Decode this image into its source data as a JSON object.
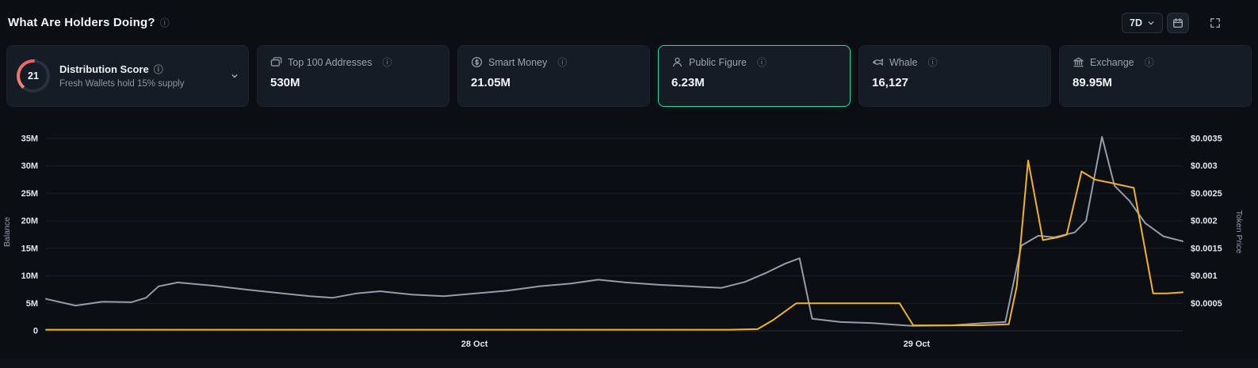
{
  "colors": {
    "accent": "#2fd6a5",
    "gauge_arc": "#e85f63",
    "balance_line": "#eeb422",
    "price_line": "#959daa"
  },
  "header": {
    "title": "What Are Holders Doing?",
    "info_icon": "ⓘ",
    "range_label": "7D",
    "calendar_icon": "calendar-icon",
    "fullscreen_icon": "fullscreen-icon",
    "range_caret_icon": "chevron-down-icon"
  },
  "cards": {
    "distribution": {
      "score": "21",
      "title": "Distribution Score",
      "info_icon": "ⓘ",
      "subtitle": "Fresh Wallets hold 15% supply",
      "chevron_icon": "chevron-down-icon"
    },
    "metrics": [
      {
        "label": "Top 100 Addresses",
        "value": "530M",
        "icon": "top-100-addresses-icon",
        "info_icon": "ⓘ",
        "selected": false
      },
      {
        "label": "Smart Money",
        "value": "21.05M",
        "icon": "smart-money-icon",
        "info_icon": "ⓘ",
        "selected": false
      },
      {
        "label": "Public Figure",
        "value": "6.23M",
        "icon": "public-figure-icon",
        "info_icon": "ⓘ",
        "selected": true
      },
      {
        "label": "Whale",
        "value": "16,127",
        "icon": "whale-icon",
        "info_icon": "ⓘ",
        "selected": false
      },
      {
        "label": "Exchange",
        "value": "89.95M",
        "icon": "exchange-icon",
        "info_icon": "ⓘ",
        "selected": false
      }
    ]
  },
  "chart_data": {
    "type": "line",
    "left_axis": {
      "label": "Balance",
      "max": 36,
      "ticks": [
        0,
        5,
        10,
        15,
        20,
        25,
        30,
        35
      ],
      "tick_labels": [
        "0",
        "5M",
        "10M",
        "15M",
        "20M",
        "25M",
        "30M",
        "35M"
      ]
    },
    "right_axis": {
      "label": "Token Price",
      "max": 0.0036,
      "ticks": [
        0.0005,
        0.001,
        0.0015,
        0.002,
        0.0025,
        0.003,
        0.0035
      ],
      "tick_labels": [
        "$0.0005",
        "$0.001",
        "$0.0015",
        "$0.002",
        "$0.0025",
        "$0.003",
        "$0.0035"
      ]
    },
    "x_labels": [
      {
        "label": "28 Oct",
        "pos": 37.7
      },
      {
        "label": "29 Oct",
        "pos": 76.6
      }
    ],
    "grid": true,
    "legend": "none",
    "series": [
      {
        "name": "Token Price",
        "axis": "right",
        "color": "#959daa",
        "unit": "$",
        "points": [
          [
            0,
            0.00058
          ],
          [
            2.6,
            0.00046
          ],
          [
            5,
            0.00053
          ],
          [
            7.5,
            0.00052
          ],
          [
            8.8,
            0.0006
          ],
          [
            9.9,
            0.00081
          ],
          [
            11.6,
            0.00088
          ],
          [
            14.8,
            0.00082
          ],
          [
            17.6,
            0.00075
          ],
          [
            20.4,
            0.00069
          ],
          [
            23.2,
            0.00063
          ],
          [
            25.2,
            0.0006
          ],
          [
            27.3,
            0.00068
          ],
          [
            29.4,
            0.00072
          ],
          [
            32.2,
            0.00066
          ],
          [
            35,
            0.00063
          ],
          [
            37.8,
            0.00068
          ],
          [
            40.6,
            0.00073
          ],
          [
            43.4,
            0.00081
          ],
          [
            46.2,
            0.00086
          ],
          [
            48.6,
            0.00093
          ],
          [
            51,
            0.00088
          ],
          [
            53.8,
            0.00084
          ],
          [
            56.6,
            0.00081
          ],
          [
            59.4,
            0.00078
          ],
          [
            61.5,
            0.00089
          ],
          [
            63.3,
            0.00105
          ],
          [
            65,
            0.00122
          ],
          [
            66.3,
            0.00132
          ],
          [
            67.4,
            0.00022
          ],
          [
            69.9,
            0.00016
          ],
          [
            72.7,
            0.00014
          ],
          [
            76.2,
            9e-05
          ],
          [
            79.7,
            0.0001
          ],
          [
            82.4,
            0.00014
          ],
          [
            84.4,
            0.00016
          ],
          [
            85.8,
            0.00155
          ],
          [
            87.3,
            0.00173
          ],
          [
            88.7,
            0.0017
          ],
          [
            90.5,
            0.00179
          ],
          [
            91.5,
            0.002
          ],
          [
            92.9,
            0.00353
          ],
          [
            94,
            0.00264
          ],
          [
            95.3,
            0.00237
          ],
          [
            96.7,
            0.00196
          ],
          [
            98.3,
            0.00172
          ],
          [
            100,
            0.00163
          ]
        ]
      },
      {
        "name": "Balance",
        "axis": "left",
        "color": "#eeb422",
        "unit": "M",
        "points": [
          [
            0,
            0.2
          ],
          [
            10,
            0.2
          ],
          [
            20,
            0.2
          ],
          [
            30,
            0.2
          ],
          [
            40,
            0.2
          ],
          [
            50,
            0.2
          ],
          [
            60,
            0.2
          ],
          [
            62.6,
            0.3
          ],
          [
            64,
            2
          ],
          [
            66,
            5
          ],
          [
            69,
            5
          ],
          [
            72,
            5
          ],
          [
            75.1,
            5
          ],
          [
            76.3,
            1
          ],
          [
            79,
            1
          ],
          [
            82,
            1
          ],
          [
            84.7,
            1.2
          ],
          [
            85.4,
            8
          ],
          [
            86.4,
            31
          ],
          [
            87.7,
            16.5
          ],
          [
            89,
            17
          ],
          [
            89.8,
            17.5
          ],
          [
            91.1,
            29
          ],
          [
            92.3,
            27.5
          ],
          [
            93.5,
            27
          ],
          [
            95.7,
            26
          ],
          [
            97.4,
            6.8
          ],
          [
            98.6,
            6.8
          ],
          [
            100,
            7
          ]
        ]
      }
    ]
  }
}
